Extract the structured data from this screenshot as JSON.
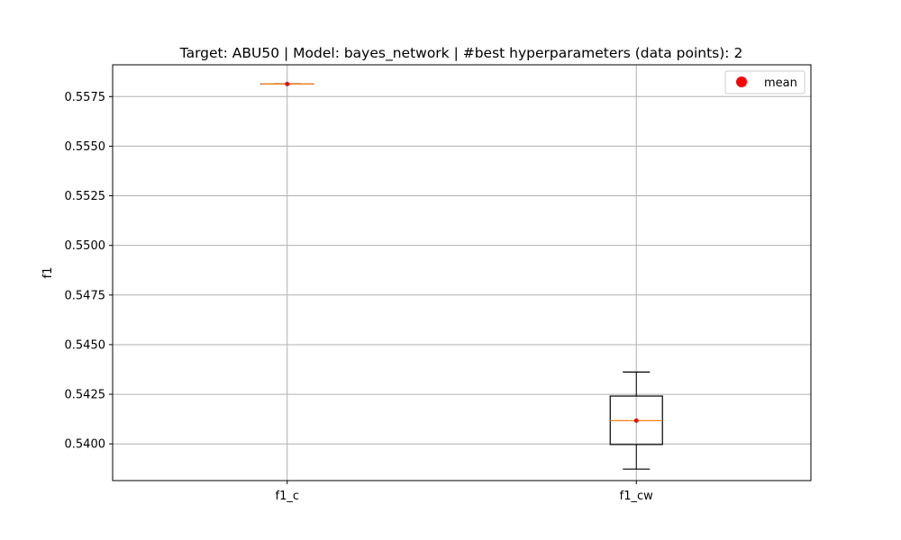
{
  "chart_data": {
    "type": "box",
    "title": "Target: ABU50 | Model: bayes_network | #best hyperparameters (data points): 2",
    "xlabel": "",
    "ylabel": "f1",
    "categories": [
      "f1_c",
      "f1_cw"
    ],
    "ylim": [
      0.53815,
      0.5591
    ],
    "yticks": [
      0.54,
      0.5425,
      0.545,
      0.5475,
      0.55,
      0.5525,
      0.555,
      0.5575
    ],
    "ytick_labels": [
      "0.5400",
      "0.5425",
      "0.5450",
      "0.5475",
      "0.5500",
      "0.5525",
      "0.5550",
      "0.5575"
    ],
    "grid": true,
    "legend": {
      "position": "top-right",
      "entries": [
        "mean"
      ]
    },
    "boxes": [
      {
        "name": "f1_c",
        "whislo": 0.55813,
        "q1": 0.55813,
        "median": 0.55813,
        "q3": 0.55813,
        "whishi": 0.55813,
        "mean": 0.55813
      },
      {
        "name": "f1_cw",
        "whislo": 0.53873,
        "q1": 0.53997,
        "median": 0.54117,
        "q3": 0.54241,
        "whishi": 0.54362,
        "mean": 0.54117
      }
    ],
    "colors": {
      "box": "#000000",
      "median": "#ff7f0e",
      "mean": "#ff0000",
      "grid": "#b0b0b0"
    }
  }
}
